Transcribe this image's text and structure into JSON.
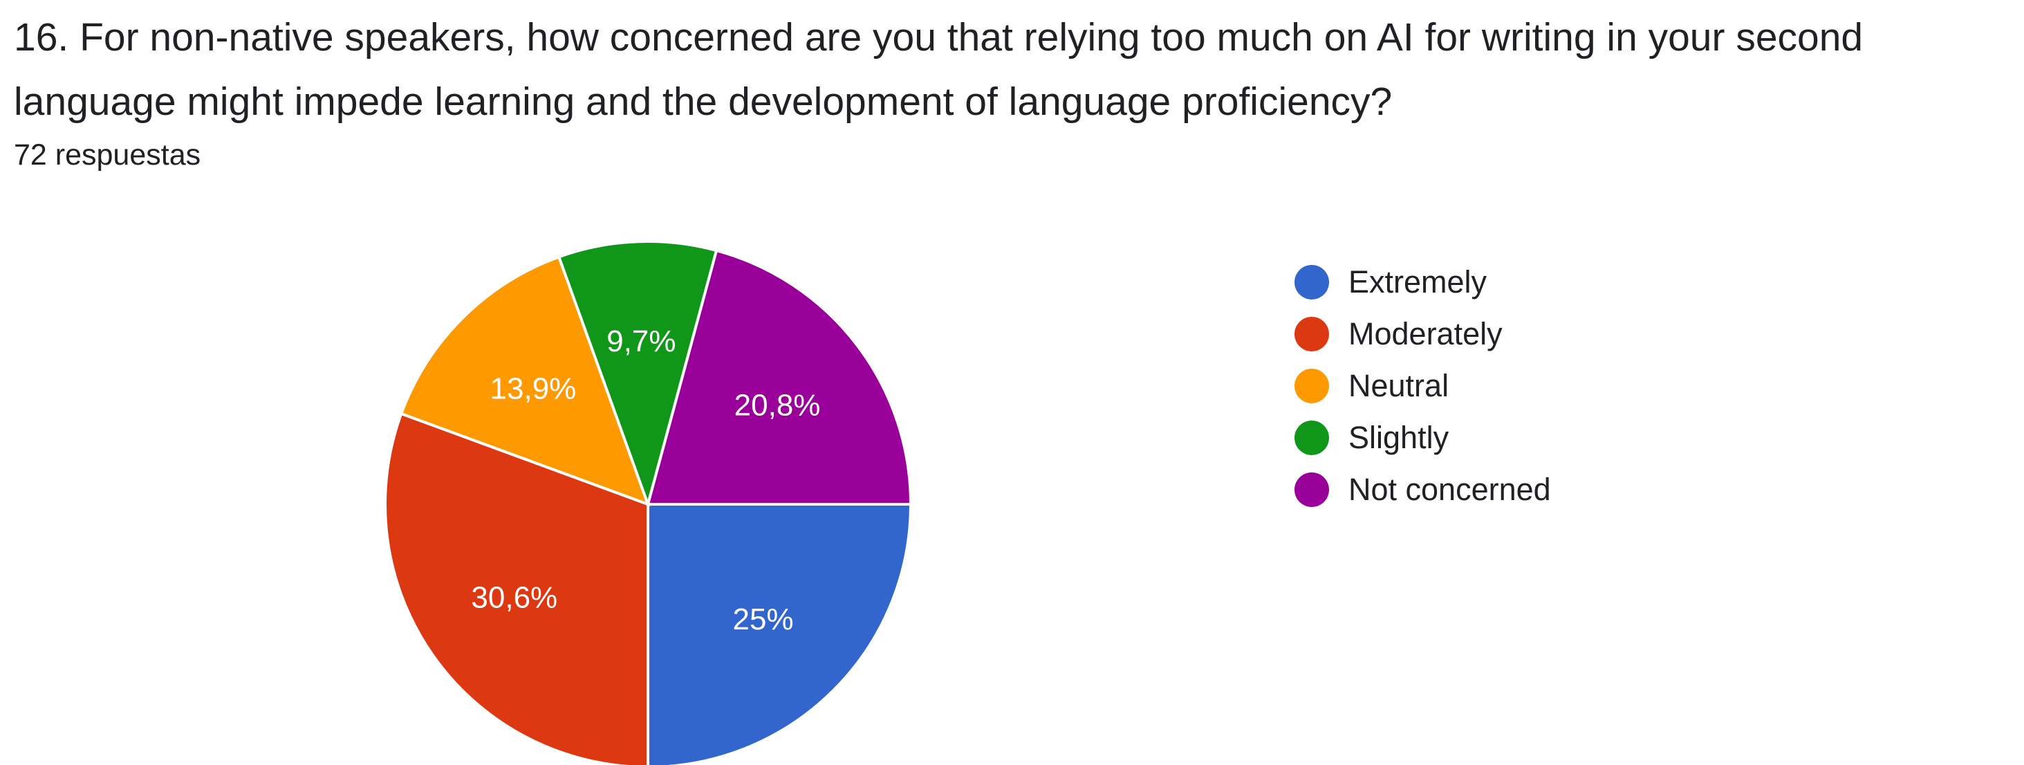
{
  "question": {
    "title": "16. For non-native speakers, how concerned are you that relying too much on AI for writing in your second language might impede learning and the development of language proficiency?",
    "response_count": "72 respuestas"
  },
  "chart_data": {
    "type": "pie",
    "title": "",
    "legend_position": "right",
    "start_angle_deg": 90,
    "direction": "clockwise",
    "slices": [
      {
        "label": "Extremely",
        "value": 25.0,
        "display": "25%",
        "color": "#3366cc"
      },
      {
        "label": "Moderately",
        "value": 30.6,
        "display": "30,6%",
        "color": "#dc3912"
      },
      {
        "label": "Neutral",
        "value": 13.9,
        "display": "13,9%",
        "color": "#ff9900"
      },
      {
        "label": "Slightly",
        "value": 9.7,
        "display": "9,7%",
        "color": "#109618"
      },
      {
        "label": "Not concerned",
        "value": 20.8,
        "display": "20,8%",
        "color": "#990099"
      }
    ]
  }
}
